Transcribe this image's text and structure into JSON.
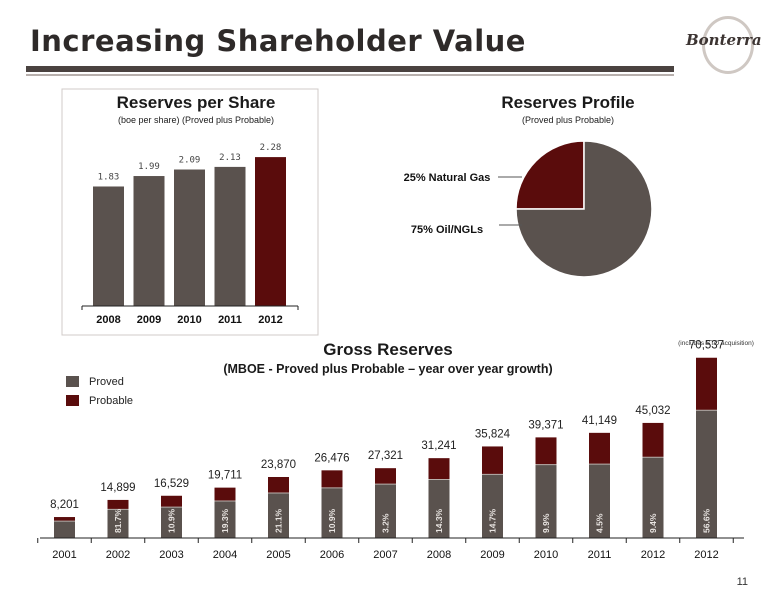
{
  "slide": {
    "title": "Increasing Shareholder Value",
    "logo_text": "Bonterra",
    "page_number": "11"
  },
  "colors": {
    "proved": "#5a524e",
    "probable": "#5a0c0c",
    "highlight_bar": "#5a0c0c",
    "title_bar": "#4a4240"
  },
  "chart_data": [
    {
      "type": "bar",
      "title": "Reserves per Share",
      "subtitle": "(boe per share) (Proved plus Probable)",
      "categories": [
        "2008",
        "2009",
        "2010",
        "2011",
        "2012"
      ],
      "values": [
        1.83,
        1.99,
        2.09,
        2.13,
        2.28
      ],
      "value_labels": [
        "1.83",
        "1.99",
        "2.09",
        "2.13",
        "2.28"
      ],
      "highlight_category": "2012",
      "ylim": [
        0,
        2.45
      ],
      "grid": false
    },
    {
      "type": "pie",
      "title": "Reserves Profile",
      "subtitle": "(Proved plus Probable)",
      "slices": [
        {
          "label": "25% Natural Gas",
          "value": 25,
          "color": "#5a0c0c"
        },
        {
          "label": "75% Oil/NGLs",
          "value": 75,
          "color": "#5a524e"
        }
      ]
    },
    {
      "type": "bar",
      "stacked": true,
      "title": "Gross Reserves",
      "subtitle": "(MBOE - Proved plus Probable – year over year growth)",
      "categories": [
        "2001",
        "2002",
        "2003",
        "2004",
        "2005",
        "2006",
        "2007",
        "2008",
        "2009",
        "2010",
        "2011",
        "2012",
        "2012"
      ],
      "totals": [
        8201,
        14899,
        16529,
        19711,
        23870,
        26476,
        27321,
        31241,
        35824,
        39371,
        41149,
        45032,
        70537
      ],
      "total_labels": [
        "8,201",
        "14,899",
        "16,529",
        "19,711",
        "23,870",
        "26,476",
        "27,321",
        "31,241",
        "35,824",
        "39,371",
        "41,149",
        "45,032",
        "70,537"
      ],
      "series": [
        {
          "name": "Proved",
          "values": [
            6600,
            11200,
            12100,
            14500,
            17600,
            19600,
            21100,
            22900,
            24900,
            28700,
            28900,
            31600,
            50000
          ]
        },
        {
          "name": "Probable",
          "values": [
            1601,
            3699,
            4429,
            5211,
            6270,
            6876,
            6221,
            8341,
            10924,
            10671,
            12249,
            13432,
            20537
          ]
        }
      ],
      "growth_labels": [
        "",
        "81.7%",
        "10.9%",
        "19.3%",
        "21.1%",
        "10.9%",
        "3.2%",
        "14.3%",
        "14.7%",
        "9.9%",
        "4.5%",
        "9.4%",
        "56.6%"
      ],
      "annotation": "(includes STO acquisition)",
      "legend_position": "top-left",
      "ylim": [
        0,
        72000
      ],
      "grid": false
    }
  ]
}
